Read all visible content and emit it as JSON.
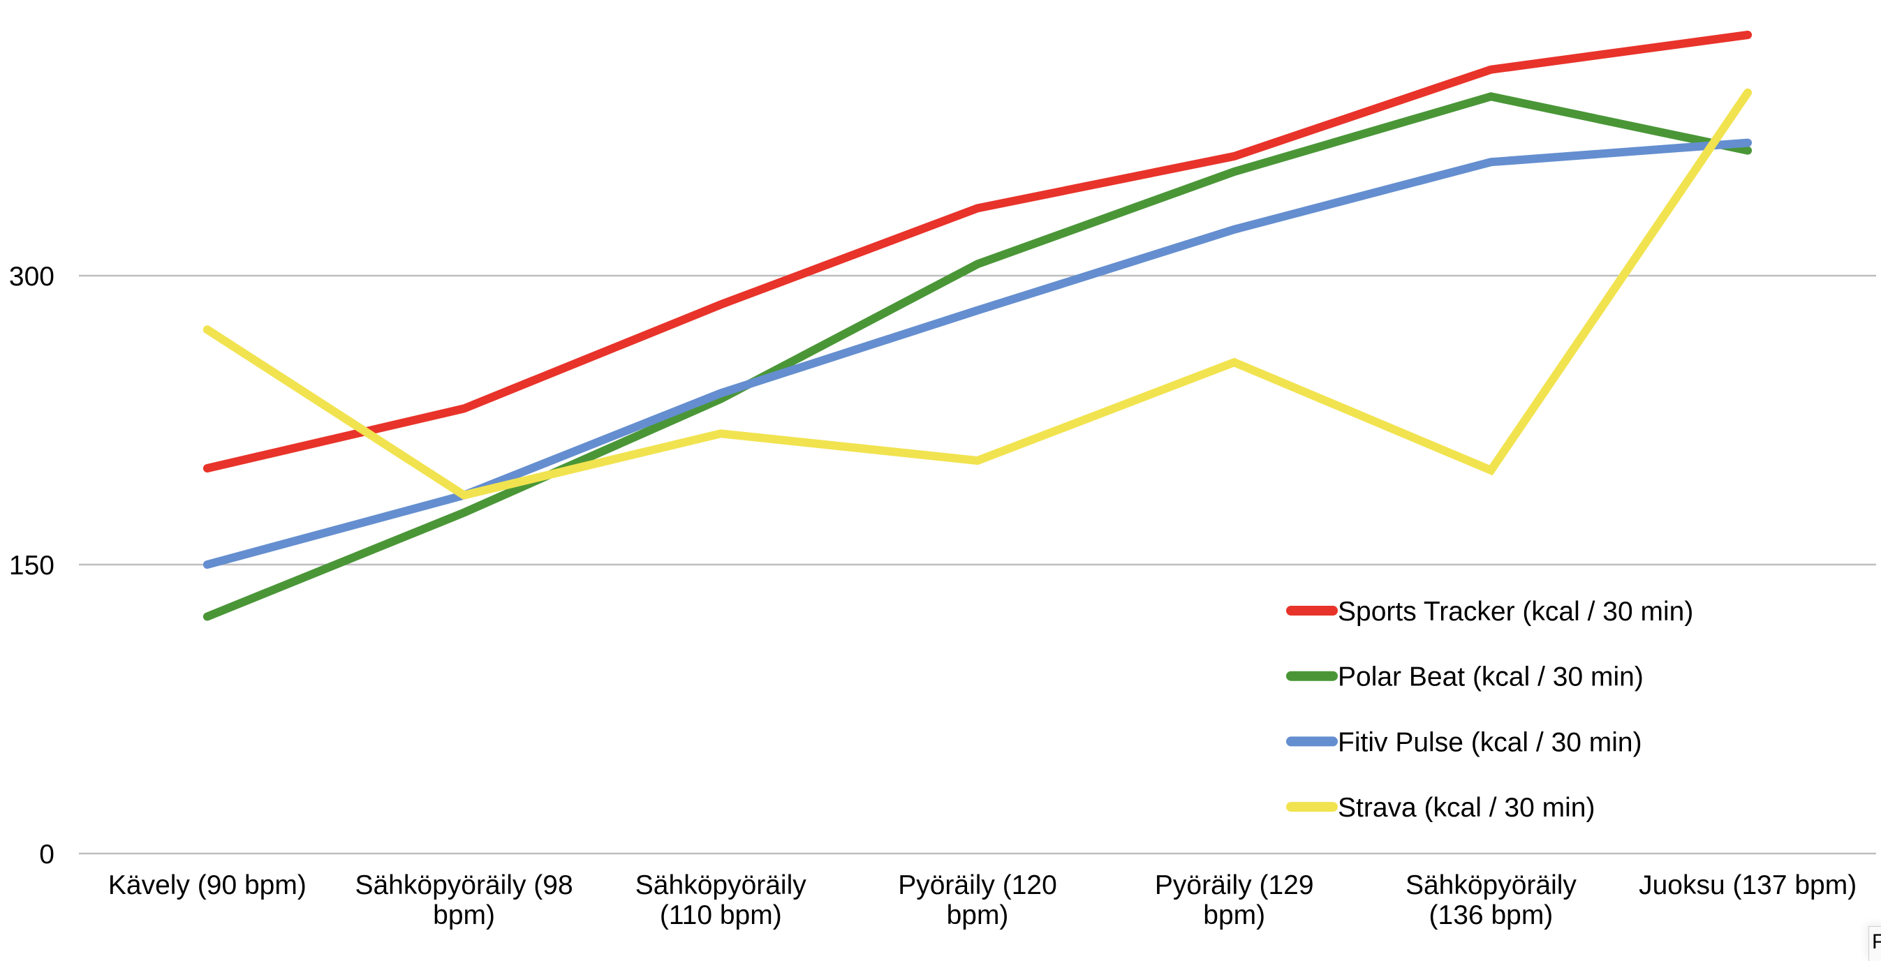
{
  "chart_data": {
    "type": "line",
    "title": "",
    "xlabel": "",
    "ylabel": "",
    "ylim": [
      0,
      450
    ],
    "yticks": [
      0,
      150,
      300
    ],
    "ytick_labels": [
      "0",
      "150",
      "300"
    ],
    "grid": true,
    "legend_position": "bottom-right",
    "categories": [
      "Kävely (90 bpm)",
      "Sähköpyöräily (98 bpm)",
      "Sähköpyöräily (110 bpm)",
      "Pyöräily (120 bpm)",
      "Pyöräily (129 bpm)",
      "Sähköpyöräily (136 bpm)",
      "Juoksu (137 bpm)"
    ],
    "category_label_lines": [
      [
        "Kävely (90 bpm)"
      ],
      [
        "Sähköpyöräily (98",
        "bpm)"
      ],
      [
        "Sähköpyöräily",
        "(110 bpm)"
      ],
      [
        "Pyöräily (120",
        "bpm)"
      ],
      [
        "Pyöräily (129",
        "bpm)"
      ],
      [
        "Sähköpyöräily",
        "(136 bpm)"
      ],
      [
        "Juoksu (137 bpm)"
      ]
    ],
    "series": [
      {
        "name": "Sports Tracker (kcal / 30 min)",
        "color": "#E8332A",
        "values": [
          200,
          231,
          285,
          335,
          362,
          407,
          425
        ]
      },
      {
        "name": "Polar Beat (kcal / 30 min)",
        "color": "#4A9637",
        "values": [
          123,
          177,
          236,
          306,
          354,
          393,
          365
        ]
      },
      {
        "name": "Fitiv Pulse (kcal / 30 min)",
        "color": "#648ECF",
        "values": [
          150,
          186,
          239,
          282,
          324,
          359,
          369
        ]
      },
      {
        "name": "Strava (kcal / 30 min)",
        "color": "#F1E34F",
        "values": [
          272,
          186,
          218,
          204,
          255,
          199,
          395
        ]
      }
    ]
  },
  "overlay": {
    "corner_popup_text": "F"
  },
  "colors": {
    "gridline": "#BEBEBE",
    "text": "#000000",
    "background": "#FFFFFF"
  }
}
